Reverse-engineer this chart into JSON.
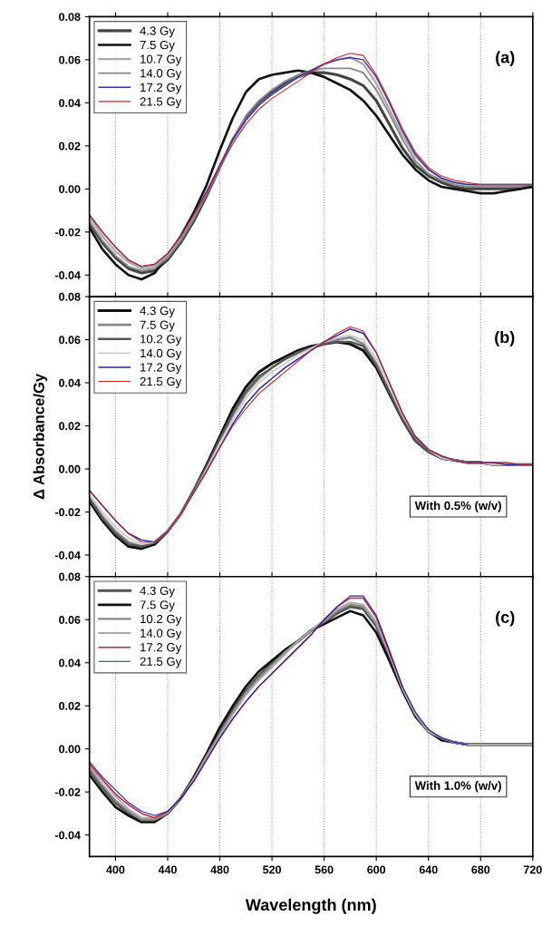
{
  "chart_data": [
    {
      "type": "line",
      "x": [
        380,
        390,
        400,
        410,
        420,
        430,
        440,
        450,
        460,
        470,
        480,
        490,
        500,
        510,
        520,
        530,
        540,
        550,
        560,
        570,
        580,
        590,
        600,
        610,
        620,
        630,
        640,
        650,
        660,
        670,
        680,
        690,
        700,
        710,
        720
      ],
      "xlim": [
        380,
        720
      ],
      "ylim": [
        -0.05,
        0.08
      ],
      "xticks": [
        400,
        440,
        480,
        520,
        560,
        600,
        640,
        680,
        720
      ],
      "yticks": [
        {
          "value": -0.04,
          "label": "-0.04"
        },
        {
          "value": -0.02,
          "label": "-0.02"
        },
        {
          "value": 0,
          "label": "0.00"
        },
        {
          "value": 0.02,
          "label": "0.02"
        },
        {
          "value": 0.04,
          "label": "0.04"
        },
        {
          "value": 0.06,
          "label": "0.06"
        },
        {
          "value": 0.08,
          "label": "0.08"
        }
      ],
      "tick_labels": "y",
      "grid": "x",
      "legend": "top left",
      "annotations": [
        "(a)"
      ],
      "series": [
        {
          "name": "4.3 Gy",
          "color": "#444444",
          "values": [
            -0.016,
            -0.025,
            -0.032,
            -0.037,
            -0.039,
            -0.038,
            -0.033,
            -0.025,
            -0.015,
            -0.003,
            0.01,
            0.023,
            0.033,
            0.04,
            0.045,
            0.049,
            0.052,
            0.054,
            0.054,
            0.053,
            0.051,
            0.048,
            0.041,
            0.03,
            0.019,
            0.011,
            0.006,
            0.003,
            0.001,
            0.0,
            0.0,
            0.0,
            0.0,
            0.001,
            0.001
          ]
        },
        {
          "name": "7.5 Gy",
          "color": "#111111",
          "values": [
            -0.018,
            -0.028,
            -0.035,
            -0.04,
            -0.042,
            -0.039,
            -0.031,
            -0.022,
            -0.011,
            0.002,
            0.018,
            0.033,
            0.045,
            0.051,
            0.053,
            0.054,
            0.055,
            0.054,
            0.052,
            0.049,
            0.046,
            0.041,
            0.034,
            0.025,
            0.016,
            0.009,
            0.004,
            0.001,
            0.0,
            -0.001,
            -0.002,
            -0.002,
            -0.001,
            0.0,
            0.001
          ]
        },
        {
          "name": "10.7 Gy",
          "color": "#aaaaaa",
          "values": [
            -0.013,
            -0.022,
            -0.029,
            -0.034,
            -0.037,
            -0.036,
            -0.031,
            -0.023,
            -0.013,
            -0.002,
            0.01,
            0.022,
            0.032,
            0.039,
            0.044,
            0.048,
            0.052,
            0.055,
            0.058,
            0.06,
            0.061,
            0.058,
            0.049,
            0.037,
            0.025,
            0.015,
            0.009,
            0.005,
            0.003,
            0.002,
            0.002,
            0.002,
            0.002,
            0.002,
            0.002
          ]
        },
        {
          "name": "14.0 Gy",
          "color": "#888888",
          "values": [
            -0.015,
            -0.024,
            -0.031,
            -0.036,
            -0.038,
            -0.037,
            -0.032,
            -0.024,
            -0.014,
            -0.002,
            0.011,
            0.023,
            0.034,
            0.041,
            0.046,
            0.05,
            0.053,
            0.055,
            0.056,
            0.056,
            0.056,
            0.054,
            0.046,
            0.035,
            0.023,
            0.013,
            0.007,
            0.004,
            0.002,
            0.001,
            0.001,
            0.001,
            0.001,
            0.001,
            0.002
          ]
        },
        {
          "name": "17.2 Gy",
          "color": "#3333aa",
          "values": [
            -0.012,
            -0.02,
            -0.027,
            -0.033,
            -0.036,
            -0.035,
            -0.03,
            -0.022,
            -0.012,
            -0.001,
            0.011,
            0.023,
            0.032,
            0.039,
            0.044,
            0.048,
            0.052,
            0.055,
            0.058,
            0.06,
            0.061,
            0.06,
            0.052,
            0.04,
            0.027,
            0.016,
            0.009,
            0.005,
            0.003,
            0.002,
            0.002,
            0.002,
            0.002,
            0.002,
            0.002
          ]
        },
        {
          "name": "21.5 Gy",
          "color": "#dd2222",
          "values": [
            -0.012,
            -0.02,
            -0.027,
            -0.033,
            -0.036,
            -0.035,
            -0.03,
            -0.022,
            -0.012,
            -0.002,
            0.01,
            0.021,
            0.03,
            0.037,
            0.042,
            0.046,
            0.05,
            0.054,
            0.058,
            0.061,
            0.063,
            0.062,
            0.053,
            0.041,
            0.028,
            0.017,
            0.01,
            0.006,
            0.004,
            0.003,
            0.002,
            0.002,
            0.002,
            0.002,
            0.002
          ]
        }
      ]
    },
    {
      "type": "line",
      "x": [
        380,
        390,
        400,
        410,
        420,
        430,
        440,
        450,
        460,
        470,
        480,
        490,
        500,
        510,
        520,
        530,
        540,
        550,
        560,
        570,
        580,
        590,
        600,
        610,
        620,
        630,
        640,
        650,
        660,
        670,
        680,
        690,
        700,
        710,
        720
      ],
      "xlim": [
        380,
        720
      ],
      "ylim": [
        -0.05,
        0.08
      ],
      "xticks": [
        400,
        440,
        480,
        520,
        560,
        600,
        640,
        680,
        720
      ],
      "yticks": [
        {
          "value": -0.04,
          "label": "-0.04"
        },
        {
          "value": -0.02,
          "label": "-0.02"
        },
        {
          "value": 0,
          "label": "0.00"
        },
        {
          "value": 0.02,
          "label": "0.02"
        },
        {
          "value": 0.04,
          "label": "0.04"
        },
        {
          "value": 0.06,
          "label": "0.06"
        },
        {
          "value": 0.08,
          "label": "0.08"
        }
      ],
      "tick_labels": "y",
      "grid": "x",
      "legend": "top left",
      "ylabel": "Δ Absorbance/Gy",
      "annotations": [
        "(b)",
        "With 0.5% (w/v)"
      ],
      "series": [
        {
          "name": "4.3 Gy",
          "color": "#111111",
          "values": [
            -0.015,
            -0.024,
            -0.031,
            -0.036,
            -0.037,
            -0.035,
            -0.029,
            -0.021,
            -0.01,
            0.002,
            0.015,
            0.028,
            0.038,
            0.045,
            0.049,
            0.052,
            0.055,
            0.057,
            0.058,
            0.059,
            0.058,
            0.055,
            0.047,
            0.035,
            0.023,
            0.013,
            0.008,
            0.005,
            0.004,
            0.003,
            0.003,
            0.002,
            0.002,
            0.002,
            0.002
          ]
        },
        {
          "name": "7.5 Gy",
          "color": "#888888",
          "values": [
            -0.013,
            -0.022,
            -0.029,
            -0.034,
            -0.036,
            -0.034,
            -0.029,
            -0.021,
            -0.01,
            0.001,
            0.013,
            0.025,
            0.035,
            0.042,
            0.047,
            0.051,
            0.054,
            0.056,
            0.058,
            0.06,
            0.061,
            0.058,
            0.049,
            0.036,
            0.024,
            0.014,
            0.008,
            0.005,
            0.004,
            0.003,
            0.003,
            0.002,
            0.002,
            0.002,
            0.002
          ]
        },
        {
          "name": "10.2 Gy",
          "color": "#555555",
          "values": [
            -0.014,
            -0.023,
            -0.03,
            -0.035,
            -0.036,
            -0.034,
            -0.029,
            -0.021,
            -0.01,
            0.001,
            0.014,
            0.026,
            0.036,
            0.043,
            0.047,
            0.051,
            0.054,
            0.056,
            0.058,
            0.059,
            0.059,
            0.057,
            0.048,
            0.036,
            0.023,
            0.013,
            0.008,
            0.005,
            0.004,
            0.003,
            0.003,
            0.002,
            0.002,
            0.002,
            0.002
          ]
        },
        {
          "name": "14.0 Gy",
          "color": "#cccccc",
          "values": [
            -0.012,
            -0.02,
            -0.027,
            -0.032,
            -0.035,
            -0.034,
            -0.029,
            -0.021,
            -0.011,
            0.0,
            0.012,
            0.023,
            0.033,
            0.04,
            0.045,
            0.049,
            0.053,
            0.056,
            0.059,
            0.061,
            0.062,
            0.06,
            0.051,
            0.038,
            0.025,
            0.015,
            0.009,
            0.005,
            0.004,
            0.003,
            0.003,
            0.002,
            0.002,
            0.002,
            0.002
          ]
        },
        {
          "name": "17.2 Gy",
          "color": "#2222bb",
          "values": [
            -0.01,
            -0.017,
            -0.024,
            -0.03,
            -0.033,
            -0.034,
            -0.029,
            -0.021,
            -0.011,
            -0.001,
            0.01,
            0.021,
            0.03,
            0.037,
            0.042,
            0.047,
            0.051,
            0.055,
            0.059,
            0.062,
            0.065,
            0.063,
            0.054,
            0.04,
            0.026,
            0.015,
            0.009,
            0.006,
            0.004,
            0.003,
            0.003,
            0.003,
            0.002,
            0.002,
            0.002
          ]
        },
        {
          "name": "21.5 Gy",
          "color": "#cc2222",
          "values": [
            -0.01,
            -0.017,
            -0.024,
            -0.03,
            -0.034,
            -0.034,
            -0.029,
            -0.021,
            -0.011,
            -0.001,
            0.01,
            0.02,
            0.028,
            0.035,
            0.04,
            0.045,
            0.05,
            0.055,
            0.059,
            0.063,
            0.066,
            0.064,
            0.054,
            0.04,
            0.026,
            0.015,
            0.009,
            0.006,
            0.004,
            0.003,
            0.003,
            0.003,
            0.003,
            0.002,
            0.002
          ]
        }
      ]
    },
    {
      "type": "line",
      "x": [
        380,
        390,
        400,
        410,
        420,
        430,
        440,
        450,
        460,
        470,
        480,
        490,
        500,
        510,
        520,
        530,
        540,
        550,
        560,
        570,
        580,
        590,
        600,
        610,
        620,
        630,
        640,
        650,
        660,
        670,
        680,
        690,
        700,
        710,
        720
      ],
      "xlim": [
        380,
        720
      ],
      "ylim": [
        -0.05,
        0.08
      ],
      "xticks": [
        400,
        440,
        480,
        520,
        560,
        600,
        640,
        680,
        720
      ],
      "yticks": [
        {
          "value": -0.04,
          "label": "-0.04"
        },
        {
          "value": -0.02,
          "label": "-0.02"
        },
        {
          "value": 0,
          "label": "0.00"
        },
        {
          "value": 0.02,
          "label": "0.02"
        },
        {
          "value": 0.04,
          "label": "0.04"
        },
        {
          "value": 0.06,
          "label": "0.06"
        },
        {
          "value": 0.08,
          "label": "0.08"
        }
      ],
      "grid": "x",
      "legend": "top left",
      "xlabel": "Wavelength (nm)",
      "annotations": [
        "(c)",
        "With 1.0% (w/v)"
      ],
      "series": [
        {
          "name": "4.3 Gy",
          "color": "#555555",
          "values": [
            -0.01,
            -0.018,
            -0.025,
            -0.03,
            -0.033,
            -0.033,
            -0.03,
            -0.023,
            -0.014,
            -0.003,
            0.008,
            0.018,
            0.027,
            0.034,
            0.04,
            0.045,
            0.05,
            0.055,
            0.059,
            0.063,
            0.066,
            0.065,
            0.057,
            0.043,
            0.028,
            0.016,
            0.008,
            0.005,
            0.003,
            0.002,
            0.002,
            0.002,
            0.002,
            0.002,
            0.002
          ]
        },
        {
          "name": "7.5 Gy",
          "color": "#111111",
          "values": [
            -0.012,
            -0.02,
            -0.027,
            -0.031,
            -0.034,
            -0.034,
            -0.03,
            -0.023,
            -0.013,
            -0.002,
            0.01,
            0.02,
            0.029,
            0.036,
            0.041,
            0.046,
            0.05,
            0.055,
            0.058,
            0.061,
            0.064,
            0.062,
            0.054,
            0.041,
            0.027,
            0.015,
            0.008,
            0.004,
            0.003,
            0.002,
            0.002,
            0.002,
            0.002,
            0.002,
            0.002
          ]
        },
        {
          "name": "10.2 Gy",
          "color": "#888888",
          "values": [
            -0.009,
            -0.017,
            -0.024,
            -0.029,
            -0.033,
            -0.033,
            -0.03,
            -0.023,
            -0.014,
            -0.003,
            0.007,
            0.017,
            0.026,
            0.033,
            0.039,
            0.045,
            0.05,
            0.055,
            0.059,
            0.064,
            0.067,
            0.066,
            0.058,
            0.044,
            0.028,
            0.016,
            0.008,
            0.005,
            0.003,
            0.002,
            0.002,
            0.002,
            0.002,
            0.002,
            0.002
          ]
        },
        {
          "name": "14.0 Gy",
          "color": "#aaaaaa",
          "values": [
            -0.008,
            -0.015,
            -0.022,
            -0.028,
            -0.032,
            -0.032,
            -0.029,
            -0.023,
            -0.014,
            -0.004,
            0.006,
            0.016,
            0.025,
            0.032,
            0.038,
            0.044,
            0.05,
            0.055,
            0.06,
            0.065,
            0.068,
            0.067,
            0.059,
            0.044,
            0.028,
            0.016,
            0.008,
            0.005,
            0.003,
            0.002,
            0.002,
            0.002,
            0.002,
            0.002,
            0.002
          ]
        },
        {
          "name": "17.2 Gy",
          "color": "#cc2233",
          "values": [
            -0.007,
            -0.014,
            -0.021,
            -0.026,
            -0.03,
            -0.032,
            -0.029,
            -0.023,
            -0.015,
            -0.005,
            0.005,
            0.014,
            0.022,
            0.029,
            0.035,
            0.041,
            0.047,
            0.053,
            0.06,
            0.066,
            0.07,
            0.07,
            0.061,
            0.045,
            0.029,
            null,
            null,
            null,
            null,
            null,
            null,
            null,
            null,
            null,
            null
          ]
        },
        {
          "name": "21.5 Gy",
          "color": "#2222aa",
          "values": [
            -0.006,
            -0.013,
            -0.019,
            -0.025,
            -0.029,
            -0.031,
            -0.029,
            -0.023,
            -0.015,
            -0.005,
            0.005,
            0.014,
            0.022,
            0.029,
            0.035,
            0.041,
            0.047,
            0.053,
            0.06,
            0.066,
            0.071,
            0.071,
            0.062,
            0.046,
            0.029,
            0.017,
            0.009,
            0.005,
            0.003,
            0.002,
            null,
            null,
            null,
            null,
            null
          ]
        }
      ]
    }
  ]
}
